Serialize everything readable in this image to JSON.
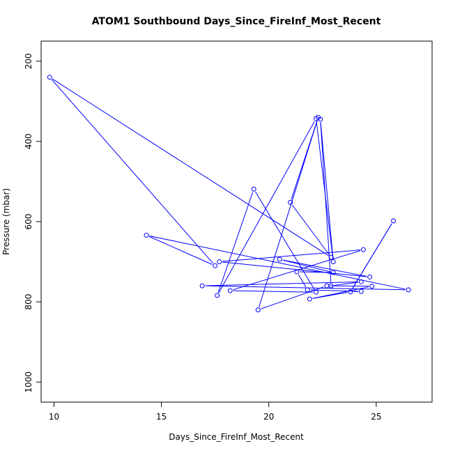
{
  "chart_data": {
    "type": "line",
    "title": "ATOM1 Southbound Days_Since_FireInf_Most_Recent",
    "xlabel": "Days_Since_FireInf_Most_Recent",
    "ylabel": "Pressure (mbar)",
    "xlim": [
      9.4,
      27.6
    ],
    "ylim": [
      1050,
      150
    ],
    "y_axis_inverted": true,
    "x_ticks": [
      10,
      15,
      20,
      25
    ],
    "y_ticks": [
      200,
      400,
      600,
      800,
      1000
    ],
    "grid": false,
    "legend": "none",
    "marker": "open-circle",
    "line_color": "#0000ff",
    "series": [
      {
        "x": [
          9.8,
          17.5,
          14.3,
          26.5,
          16.9,
          24.3,
          22.9,
          22.4,
          23.0,
          22.2,
          17.6,
          19.3,
          22.2,
          18.2,
          24.4,
          17.7,
          24.7,
          20.5,
          23.0,
          21.3,
          21.8,
          24.3,
          23.8,
          25.8,
          23.8,
          21.9,
          24.8,
          22.7,
          19.5,
          22.3,
          21.0,
          22.9,
          9.8
        ],
        "y": [
          240,
          710,
          634,
          770,
          760,
          750,
          760,
          345,
          700,
          343,
          784,
          519,
          776,
          772,
          670,
          700,
          738,
          694,
          727,
          725,
          770,
          774,
          775,
          598,
          775,
          793,
          761,
          760,
          820,
          340,
          552,
          689,
          240
        ]
      }
    ]
  }
}
